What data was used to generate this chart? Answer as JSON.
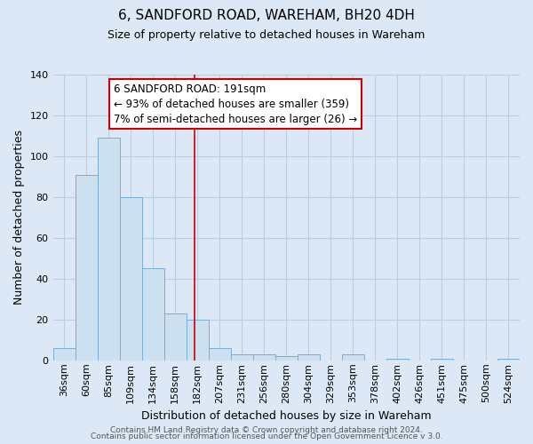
{
  "title": "6, SANDFORD ROAD, WAREHAM, BH20 4DH",
  "subtitle": "Size of property relative to detached houses in Wareham",
  "xlabel": "Distribution of detached houses by size in Wareham",
  "ylabel": "Number of detached properties",
  "bar_color": "#cde0f0",
  "bar_edge_color": "#7aaed6",
  "bins": [
    "36sqm",
    "60sqm",
    "85sqm",
    "109sqm",
    "134sqm",
    "158sqm",
    "182sqm",
    "207sqm",
    "231sqm",
    "256sqm",
    "280sqm",
    "304sqm",
    "329sqm",
    "353sqm",
    "378sqm",
    "402sqm",
    "426sqm",
    "451sqm",
    "475sqm",
    "500sqm",
    "524sqm"
  ],
  "values": [
    6,
    91,
    109,
    80,
    45,
    23,
    20,
    6,
    3,
    3,
    2,
    3,
    0,
    3,
    0,
    1,
    0,
    1,
    0,
    0,
    1
  ],
  "ylim": [
    0,
    140
  ],
  "yticks": [
    0,
    20,
    40,
    60,
    80,
    100,
    120,
    140
  ],
  "vline_bin_index": 6.36,
  "annotation_title": "6 SANDFORD ROAD: 191sqm",
  "annotation_line1": "← 93% of detached houses are smaller (359)",
  "annotation_line2": "7% of semi-detached houses are larger (26) →",
  "annotation_box_color": "#ffffff",
  "annotation_box_edge_color": "#cc0000",
  "vline_color": "#cc0000",
  "footer1": "Contains HM Land Registry data © Crown copyright and database right 2024.",
  "footer2": "Contains public sector information licensed under the Open Government Licence v 3.0.",
  "bg_color": "#dce8f5",
  "plot_bg_color": "#dce8f5",
  "grid_color": "#b8cfe0",
  "title_fontsize": 11,
  "subtitle_fontsize": 9,
  "ylabel_fontsize": 9,
  "xlabel_fontsize": 9,
  "tick_fontsize": 8,
  "footer_fontsize": 6.5
}
